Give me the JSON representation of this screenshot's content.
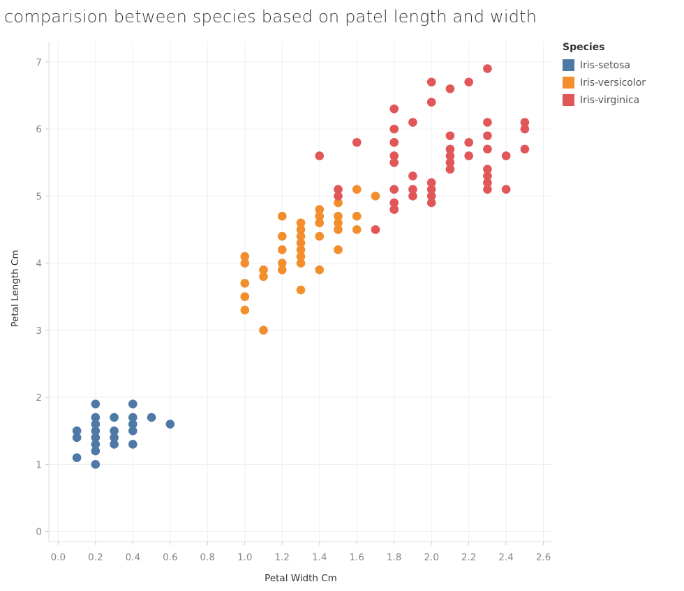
{
  "chart_data": {
    "type": "scatter",
    "title": "comparision between species based on patel length and width",
    "xlabel": "Petal Width Cm",
    "ylabel": "Petal Length Cm",
    "xlim": [
      -0.05,
      2.65
    ],
    "ylim": [
      -0.15,
      7.3
    ],
    "xticks": [
      "0.0",
      "0.2",
      "0.4",
      "0.6",
      "0.8",
      "1.0",
      "1.2",
      "1.4",
      "1.6",
      "1.8",
      "2.0",
      "2.2",
      "2.4",
      "2.6"
    ],
    "yticks": [
      "0",
      "1",
      "2",
      "3",
      "4",
      "5",
      "6",
      "7"
    ],
    "grid": true,
    "legend": {
      "title": "Species",
      "placement": "top-right"
    },
    "series": [
      {
        "name": "Iris-setosa",
        "color": "#4e79a7",
        "points": [
          [
            0.1,
            1.5
          ],
          [
            0.1,
            1.4
          ],
          [
            0.1,
            1.1
          ],
          [
            0.2,
            1.9
          ],
          [
            0.2,
            1.7
          ],
          [
            0.2,
            1.6
          ],
          [
            0.2,
            1.5
          ],
          [
            0.2,
            1.4
          ],
          [
            0.2,
            1.3
          ],
          [
            0.2,
            1.2
          ],
          [
            0.2,
            1.0
          ],
          [
            0.3,
            1.7
          ],
          [
            0.3,
            1.5
          ],
          [
            0.3,
            1.4
          ],
          [
            0.3,
            1.3
          ],
          [
            0.4,
            1.9
          ],
          [
            0.4,
            1.7
          ],
          [
            0.4,
            1.6
          ],
          [
            0.4,
            1.5
          ],
          [
            0.4,
            1.3
          ],
          [
            0.5,
            1.7
          ],
          [
            0.6,
            1.6
          ]
        ]
      },
      {
        "name": "Iris-versicolor",
        "color": "#f28e2b",
        "points": [
          [
            1.0,
            4.1
          ],
          [
            1.0,
            4.0
          ],
          [
            1.0,
            3.7
          ],
          [
            1.0,
            3.5
          ],
          [
            1.0,
            3.3
          ],
          [
            1.1,
            3.9
          ],
          [
            1.1,
            3.8
          ],
          [
            1.1,
            3.0
          ],
          [
            1.2,
            4.7
          ],
          [
            1.2,
            4.4
          ],
          [
            1.2,
            4.2
          ],
          [
            1.2,
            4.0
          ],
          [
            1.2,
            3.9
          ],
          [
            1.3,
            4.6
          ],
          [
            1.3,
            4.5
          ],
          [
            1.3,
            4.4
          ],
          [
            1.3,
            4.3
          ],
          [
            1.3,
            4.2
          ],
          [
            1.3,
            4.1
          ],
          [
            1.3,
            4.0
          ],
          [
            1.3,
            3.6
          ],
          [
            1.4,
            4.8
          ],
          [
            1.4,
            4.7
          ],
          [
            1.4,
            4.6
          ],
          [
            1.4,
            4.4
          ],
          [
            1.4,
            3.9
          ],
          [
            1.5,
            4.9
          ],
          [
            1.5,
            4.7
          ],
          [
            1.5,
            4.6
          ],
          [
            1.5,
            4.5
          ],
          [
            1.5,
            4.2
          ],
          [
            1.6,
            5.1
          ],
          [
            1.6,
            4.7
          ],
          [
            1.6,
            4.5
          ],
          [
            1.7,
            5.0
          ],
          [
            1.8,
            4.8
          ]
        ]
      },
      {
        "name": "Iris-virginica",
        "color": "#e15759",
        "points": [
          [
            1.4,
            5.6
          ],
          [
            1.5,
            5.1
          ],
          [
            1.5,
            5.0
          ],
          [
            1.6,
            5.8
          ],
          [
            1.7,
            4.5
          ],
          [
            1.8,
            6.3
          ],
          [
            1.8,
            6.0
          ],
          [
            1.8,
            5.8
          ],
          [
            1.8,
            5.6
          ],
          [
            1.8,
            5.5
          ],
          [
            1.8,
            5.1
          ],
          [
            1.8,
            4.9
          ],
          [
            1.8,
            4.8
          ],
          [
            1.9,
            6.1
          ],
          [
            1.9,
            5.3
          ],
          [
            1.9,
            5.1
          ],
          [
            1.9,
            5.0
          ],
          [
            2.0,
            6.7
          ],
          [
            2.0,
            6.4
          ],
          [
            2.0,
            5.2
          ],
          [
            2.0,
            5.1
          ],
          [
            2.0,
            5.0
          ],
          [
            2.0,
            4.9
          ],
          [
            2.1,
            6.6
          ],
          [
            2.1,
            5.9
          ],
          [
            2.1,
            5.7
          ],
          [
            2.1,
            5.6
          ],
          [
            2.1,
            5.5
          ],
          [
            2.1,
            5.4
          ],
          [
            2.2,
            6.7
          ],
          [
            2.2,
            5.8
          ],
          [
            2.2,
            5.6
          ],
          [
            2.3,
            6.9
          ],
          [
            2.3,
            6.1
          ],
          [
            2.3,
            5.9
          ],
          [
            2.3,
            5.7
          ],
          [
            2.3,
            5.4
          ],
          [
            2.3,
            5.3
          ],
          [
            2.3,
            5.2
          ],
          [
            2.3,
            5.1
          ],
          [
            2.4,
            5.6
          ],
          [
            2.4,
            5.1
          ],
          [
            2.5,
            6.1
          ],
          [
            2.5,
            6.0
          ],
          [
            2.5,
            5.7
          ]
        ]
      }
    ]
  }
}
